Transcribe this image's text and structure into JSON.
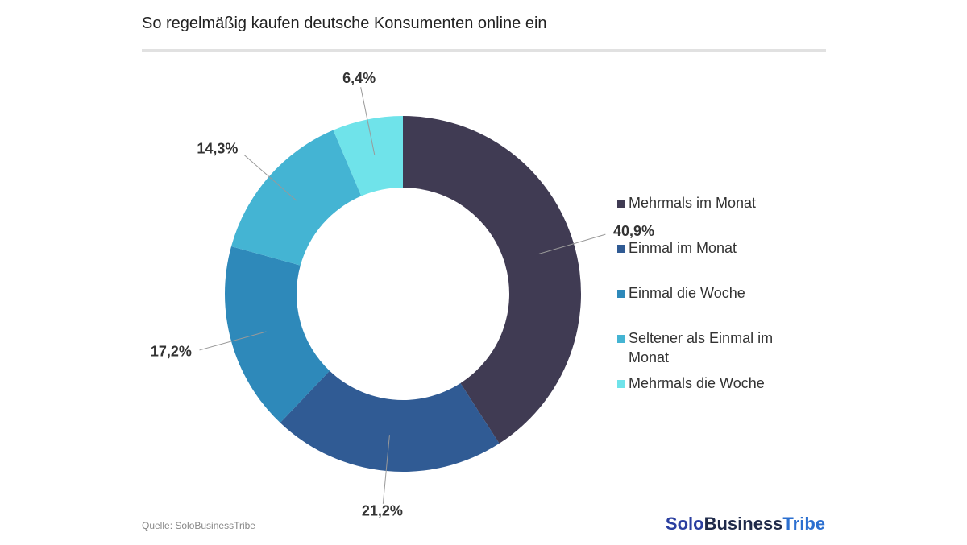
{
  "chart_data": {
    "type": "donut",
    "title": "So regelmäßig kaufen deutsche Konsumenten online ein",
    "categories": [
      "Mehrmals im Monat",
      "Einmal im Monat",
      "Einmal die Woche",
      "Seltener als Einmal im Monat",
      "Mehrmals die Woche"
    ],
    "values": [
      40.9,
      21.2,
      17.2,
      14.3,
      6.4
    ],
    "value_labels": [
      "40,9%",
      "21,2%",
      "17,2%",
      "14,3%",
      "6,4%"
    ],
    "colors": [
      "#403b53",
      "#305b94",
      "#2e89ba",
      "#44b4d3",
      "#6fe3ea"
    ],
    "legend": "right"
  },
  "source": "Quelle: SoloBusinessTribe",
  "brand": [
    "Solo",
    "Business",
    "Tribe"
  ]
}
